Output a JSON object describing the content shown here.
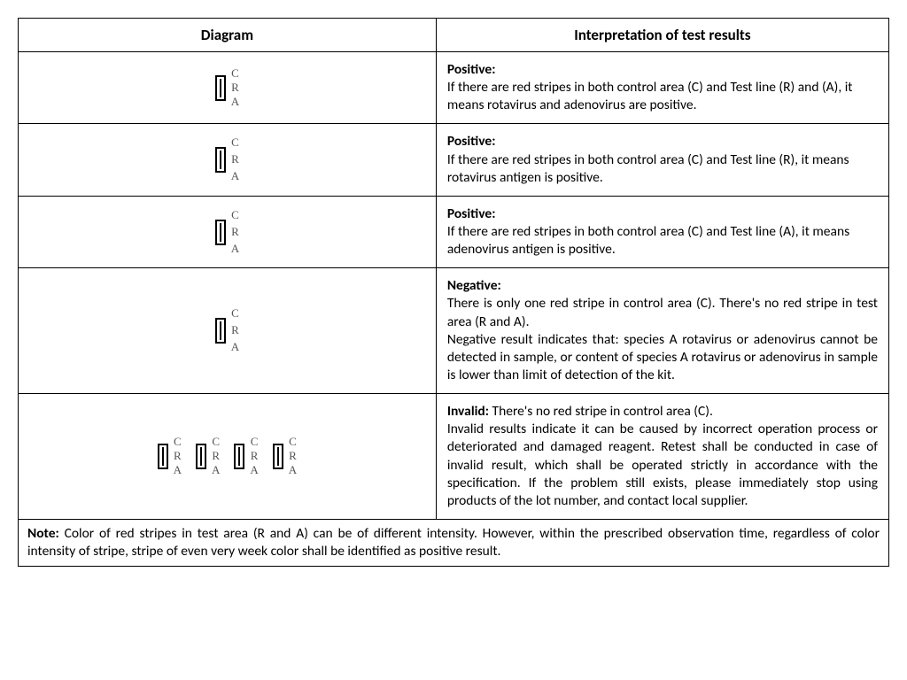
{
  "headers": {
    "diagram": "Diagram",
    "interpretation": "Interpretation of test results"
  },
  "labels": {
    "c": "C",
    "r": "R",
    "a": "A"
  },
  "rows": [
    {
      "diagrams": [
        {
          "height": "short",
          "stripes": {
            "c": true,
            "r": true,
            "a": true
          }
        }
      ],
      "title": "Positive:",
      "text": "If there are red stripes in both control area (C) and Test line (R) and (A), it means rotavirus and adenovirus are positive.",
      "justified": false
    },
    {
      "diagrams": [
        {
          "height": "tall",
          "stripes": {
            "c": true,
            "r": true,
            "a": false
          }
        }
      ],
      "title": "Positive:",
      "text": "If there are red stripes in both control area (C) and Test line (R), it means rotavirus antigen is positive.",
      "justified": false
    },
    {
      "diagrams": [
        {
          "height": "tall",
          "stripes": {
            "c": true,
            "r": false,
            "a": true
          }
        }
      ],
      "title": "Positive:",
      "text": "If there are red stripes in both control area (C) and Test line (A), it means adenovirus antigen is positive.",
      "justified": false
    },
    {
      "diagrams": [
        {
          "height": "tall",
          "stripes": {
            "c": true,
            "r": false,
            "a": false
          }
        }
      ],
      "title": "Negative:",
      "text": "There is only one red stripe in control area (C). There's no red stripe in test area (R and A).\nNegative result indicates that: species A rotavirus or adenovirus cannot be detected in sample, or content of species A rotavirus or adenovirus in sample is lower than limit of detection of the kit.",
      "justified": true
    },
    {
      "diagrams": [
        {
          "height": "short",
          "stripes": {
            "c": false,
            "r": true,
            "a": true
          }
        },
        {
          "height": "short",
          "stripes": {
            "c": false,
            "r": true,
            "a": false
          }
        },
        {
          "height": "short",
          "stripes": {
            "c": false,
            "r": false,
            "a": true
          }
        },
        {
          "height": "short",
          "stripes": {
            "c": false,
            "r": false,
            "a": false
          }
        }
      ],
      "title": "Invalid:",
      "title_inline": true,
      "text_first": " There's no red stripe in control area (C).",
      "text": "Invalid results indicate it can be caused by incorrect operation process or deteriorated and damaged reagent. Retest shall be conducted in case of invalid result, which shall be operated strictly in accordance with the specification. If the problem still exists, please immediately stop using products of the lot number, and contact local supplier.",
      "justified": true
    }
  ],
  "note": {
    "label": "Note:",
    "text": " Color of red stripes in test area (R and A) can be of different intensity. However, within the prescribed observation time, regardless of color intensity of stripe, stripe of even very week color shall be identified as positive result."
  },
  "stripe_positions": {
    "short": {
      "c": 14,
      "r": 30,
      "a": 46
    },
    "tall": {
      "c": 24,
      "r": 42,
      "a": 60
    }
  },
  "stripe_color": "#e81c1c"
}
